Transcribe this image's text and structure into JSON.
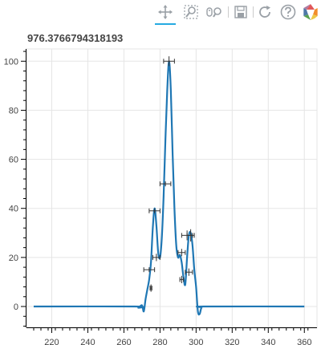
{
  "toolbar": {
    "tools": [
      {
        "name": "pan-tool",
        "icon": "pan-icon",
        "active": true
      },
      {
        "name": "box-zoom-tool",
        "icon": "box-zoom-icon",
        "active": false
      },
      {
        "name": "wheel-zoom-tool",
        "icon": "wheel-zoom-icon",
        "active": false
      },
      {
        "name": "save-tool",
        "icon": "save-icon",
        "active": false
      },
      {
        "name": "reset-tool",
        "icon": "reset-icon",
        "active": false
      },
      {
        "name": "help-tool",
        "icon": "help-icon",
        "active": false
      },
      {
        "name": "bokeh-logo",
        "icon": "bokeh-logo-icon",
        "active": false
      }
    ],
    "accent_color": "#26aae1"
  },
  "chart_data": {
    "type": "line",
    "title": "976.3766794318193",
    "xlim": [
      206,
      367
    ],
    "ylim": [
      -8.5,
      105
    ],
    "xticks": [
      220,
      240,
      260,
      280,
      300,
      320,
      340,
      360
    ],
    "yticks": [
      0,
      20,
      40,
      60,
      80,
      100
    ],
    "grid": true,
    "line_color": "#1f77b4",
    "series": [
      {
        "x": [
          210,
          266,
          268,
          270,
          271,
          272,
          273,
          274,
          275,
          276,
          277,
          278,
          279,
          280,
          281,
          282,
          283,
          284,
          285,
          286,
          287,
          288,
          289,
          290,
          291,
          292,
          293,
          294,
          295,
          296,
          297,
          298,
          299,
          300,
          301,
          302,
          303,
          305,
          360
        ],
        "y": [
          0,
          0,
          -0.5,
          0.5,
          -2,
          3,
          7,
          11,
          18,
          32,
          40,
          33,
          22,
          20,
          28,
          45,
          68,
          88,
          100,
          88,
          62,
          40,
          25,
          20,
          21,
          18,
          12,
          9,
          20,
          29,
          30,
          25,
          15,
          8,
          -2,
          -3,
          -0.5,
          0,
          0
        ]
      }
    ],
    "errorbars": [
      {
        "x": 285,
        "xerr": 3,
        "y": 100,
        "yerr": 2
      },
      {
        "x": 283,
        "xerr": 3,
        "y": 50,
        "yerr": 1
      },
      {
        "x": 277,
        "xerr": 3,
        "y": 39,
        "yerr": 1
      },
      {
        "x": 295,
        "xerr": 3,
        "y": 29,
        "yerr": 2
      },
      {
        "x": 297,
        "xerr": 2,
        "y": 29,
        "yerr": 2.5
      },
      {
        "x": 292,
        "xerr": 2,
        "y": 22,
        "yerr": 1.5
      },
      {
        "x": 278,
        "xerr": 2,
        "y": 20,
        "yerr": 1.5
      },
      {
        "x": 274,
        "xerr": 3,
        "y": 15,
        "yerr": 1
      },
      {
        "x": 296,
        "xerr": 2,
        "y": 14,
        "yerr": 1.5
      },
      {
        "x": 292,
        "xerr": 1,
        "y": 11,
        "yerr": 1.5
      },
      {
        "x": 275,
        "xerr": 0.5,
        "y": 7.5,
        "yerr": 1.5
      }
    ]
  }
}
